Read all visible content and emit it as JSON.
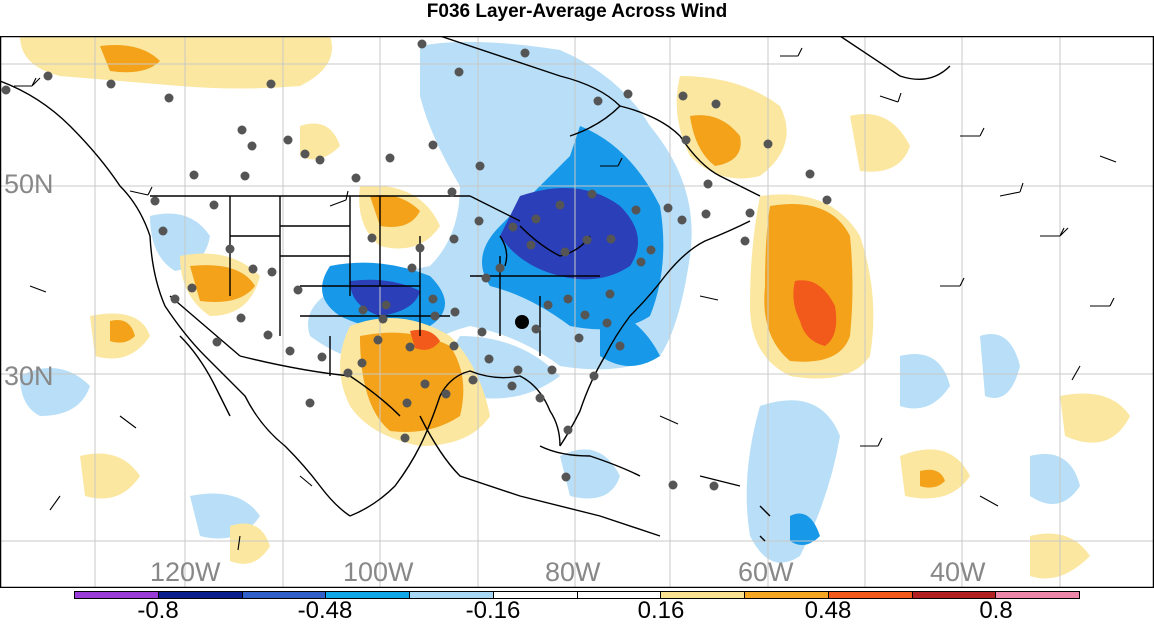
{
  "title": "F036 Layer-Average Across Wind",
  "map": {
    "longitude_labels": [
      "120W",
      "100W",
      "80W",
      "60W",
      "40W"
    ],
    "latitude_labels": [
      "50N",
      "30N"
    ],
    "colors": {
      "strong_negative": "#2a3fb8",
      "negative": "#1898e8",
      "weak_negative": "#b8dff7",
      "weak_positive": "#fbe7a0",
      "positive": "#f3a21a",
      "strong_positive": "#f25a1c",
      "station_dot": "#555555"
    }
  },
  "colorbar": {
    "labels": [
      "-0.8",
      "-0.48",
      "-0.16",
      "0.16",
      "0.48",
      "0.8"
    ],
    "colors": [
      "#9a3dd8",
      "#0b1f8c",
      "#3060c8",
      "#10a8e8",
      "#a8d8f5",
      "#ffffff",
      "#ffffff",
      "#fbe290",
      "#f5a623",
      "#f25a1c",
      "#b02020",
      "#ee88aa"
    ]
  }
}
